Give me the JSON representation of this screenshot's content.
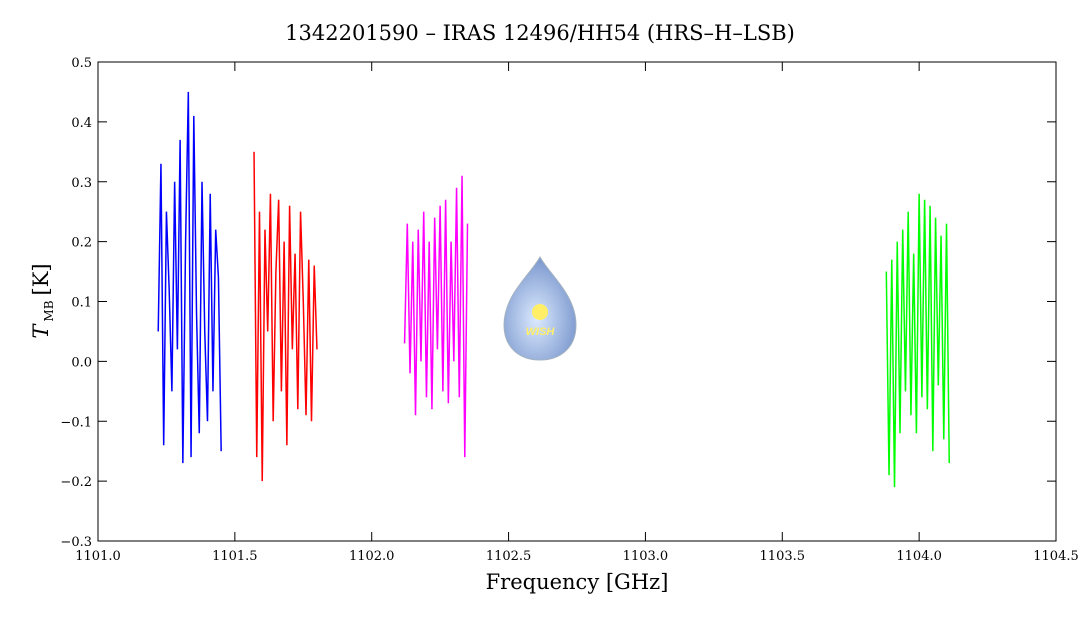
{
  "chart_data": {
    "type": "line",
    "title": "1342201590 – IRAS 12496/HH54 (HRS–H–LSB)",
    "x_label": "Frequency [GHz]",
    "y_label": "T",
    "y_label_sub": "MB",
    "y_label_unit": "[K]",
    "xlim": [
      1101.0,
      1104.5
    ],
    "ylim": [
      -0.3,
      0.5
    ],
    "xticks": [
      {
        "value": 1101.0,
        "label": "1101.0"
      },
      {
        "value": 1101.5,
        "label": "1101.5"
      },
      {
        "value": 1102.0,
        "label": "1102.0"
      },
      {
        "value": 1102.5,
        "label": "1102.5"
      },
      {
        "value": 1103.0,
        "label": "1103.0"
      },
      {
        "value": 1103.5,
        "label": "1103.5"
      },
      {
        "value": 1104.0,
        "label": "1104.0"
      },
      {
        "value": 1104.5,
        "label": "1104.5"
      }
    ],
    "yticks": [
      {
        "value": -0.3,
        "label": "−0.3"
      },
      {
        "value": -0.2,
        "label": "−0.2"
      },
      {
        "value": -0.1,
        "label": "−0.1"
      },
      {
        "value": 0,
        "label": "0.0"
      },
      0.1,
      0.2,
      0.3,
      0.4,
      0.5
    ],
    "series": [
      {
        "color": "#0000ff",
        "x": [
          1101.22,
          1101.23,
          1101.24,
          1101.25,
          1101.26,
          1101.27,
          1101.28,
          1101.29,
          1101.3,
          1101.31,
          1101.32,
          1101.33,
          1101.34,
          1101.35,
          1101.36,
          1101.37,
          1101.38,
          1101.39,
          1101.4,
          1101.41,
          1101.42,
          1101.43,
          1101.44,
          1101.45
        ],
        "values": [
          0.05,
          0.33,
          -0.14,
          0.25,
          0.12,
          -0.05,
          0.3,
          0.02,
          0.37,
          -0.17,
          0.2,
          0.45,
          -0.16,
          0.41,
          0.08,
          -0.12,
          0.3,
          0.05,
          -0.1,
          0.28,
          -0.05,
          0.22,
          0.14,
          -0.15
        ]
      },
      {
        "color": "#ff0000",
        "x": [
          1101.57,
          1101.58,
          1101.59,
          1101.6,
          1101.61,
          1101.62,
          1101.63,
          1101.64,
          1101.65,
          1101.66,
          1101.67,
          1101.68,
          1101.69,
          1101.7,
          1101.71,
          1101.72,
          1101.73,
          1101.74,
          1101.75,
          1101.76,
          1101.77,
          1101.78,
          1101.79,
          1101.8
        ],
        "values": [
          0.35,
          -0.16,
          0.25,
          -0.2,
          0.22,
          0.05,
          0.28,
          -0.1,
          0.15,
          0.27,
          -0.05,
          0.2,
          -0.14,
          0.26,
          0.02,
          0.18,
          -0.08,
          0.25,
          0.1,
          -0.09,
          0.17,
          -0.1,
          0.16,
          0.02
        ]
      },
      {
        "color": "#ff00ff",
        "x": [
          1102.12,
          1102.13,
          1102.14,
          1102.15,
          1102.16,
          1102.17,
          1102.18,
          1102.19,
          1102.2,
          1102.21,
          1102.22,
          1102.23,
          1102.24,
          1102.25,
          1102.26,
          1102.27,
          1102.28,
          1102.29,
          1102.3,
          1102.31,
          1102.32,
          1102.33,
          1102.34,
          1102.35
        ],
        "values": [
          0.03,
          0.23,
          -0.02,
          0.2,
          -0.09,
          0.22,
          0.0,
          0.25,
          -0.06,
          0.2,
          -0.08,
          0.24,
          0.02,
          0.26,
          -0.05,
          0.27,
          -0.07,
          0.2,
          0.0,
          0.29,
          -0.06,
          0.31,
          -0.16,
          0.23
        ]
      },
      {
        "color": "#00ff00",
        "x": [
          1103.88,
          1103.89,
          1103.9,
          1103.91,
          1103.92,
          1103.93,
          1103.94,
          1103.95,
          1103.96,
          1103.97,
          1103.98,
          1103.99,
          1104.0,
          1104.01,
          1104.02,
          1104.03,
          1104.04,
          1104.05,
          1104.06,
          1104.07,
          1104.08,
          1104.09,
          1104.1,
          1104.11
        ],
        "values": [
          0.15,
          -0.19,
          0.17,
          -0.21,
          0.2,
          -0.12,
          0.22,
          -0.05,
          0.25,
          -0.09,
          0.18,
          -0.12,
          0.28,
          -0.06,
          0.27,
          -0.08,
          0.26,
          -0.15,
          0.24,
          -0.04,
          0.21,
          -0.13,
          0.23,
          -0.17
        ]
      }
    ]
  },
  "logo": {
    "text": "WISH"
  }
}
